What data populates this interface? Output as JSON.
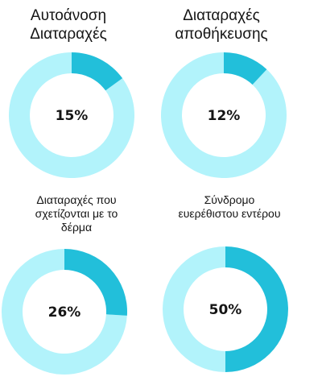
{
  "colors": {
    "highlight": "#22bfda",
    "remainder": "#b2f3fb",
    "text": "#151515"
  },
  "chart_data": [
    {
      "type": "pie",
      "donut": true,
      "title": "Αυτοάνοση Διαταραχές",
      "title_lines": [
        "Αυτοάνοση",
        "Διαταραχές"
      ],
      "value": 15,
      "label": "15%"
    },
    {
      "type": "pie",
      "donut": true,
      "title": "Διαταραχές αποθήκευσης",
      "title_lines": [
        "Διαταραχές",
        "αποθήκευσης"
      ],
      "value": 12,
      "label": "12%"
    },
    {
      "type": "pie",
      "donut": true,
      "title": "Διαταραχές που σχετίζονται με το δέρμα",
      "title_lines": [
        "Διαταραχές που",
        "σχετίζονται με το",
        "δέρμα"
      ],
      "value": 26,
      "label": "26%"
    },
    {
      "type": "pie",
      "donut": true,
      "title": "Σύνδρομο ευερέθιστου εντέρου",
      "title_lines": [
        "Σύνδρομο",
        "ευερέθιστου εντέρου"
      ],
      "value": 50,
      "label": "50%"
    }
  ]
}
